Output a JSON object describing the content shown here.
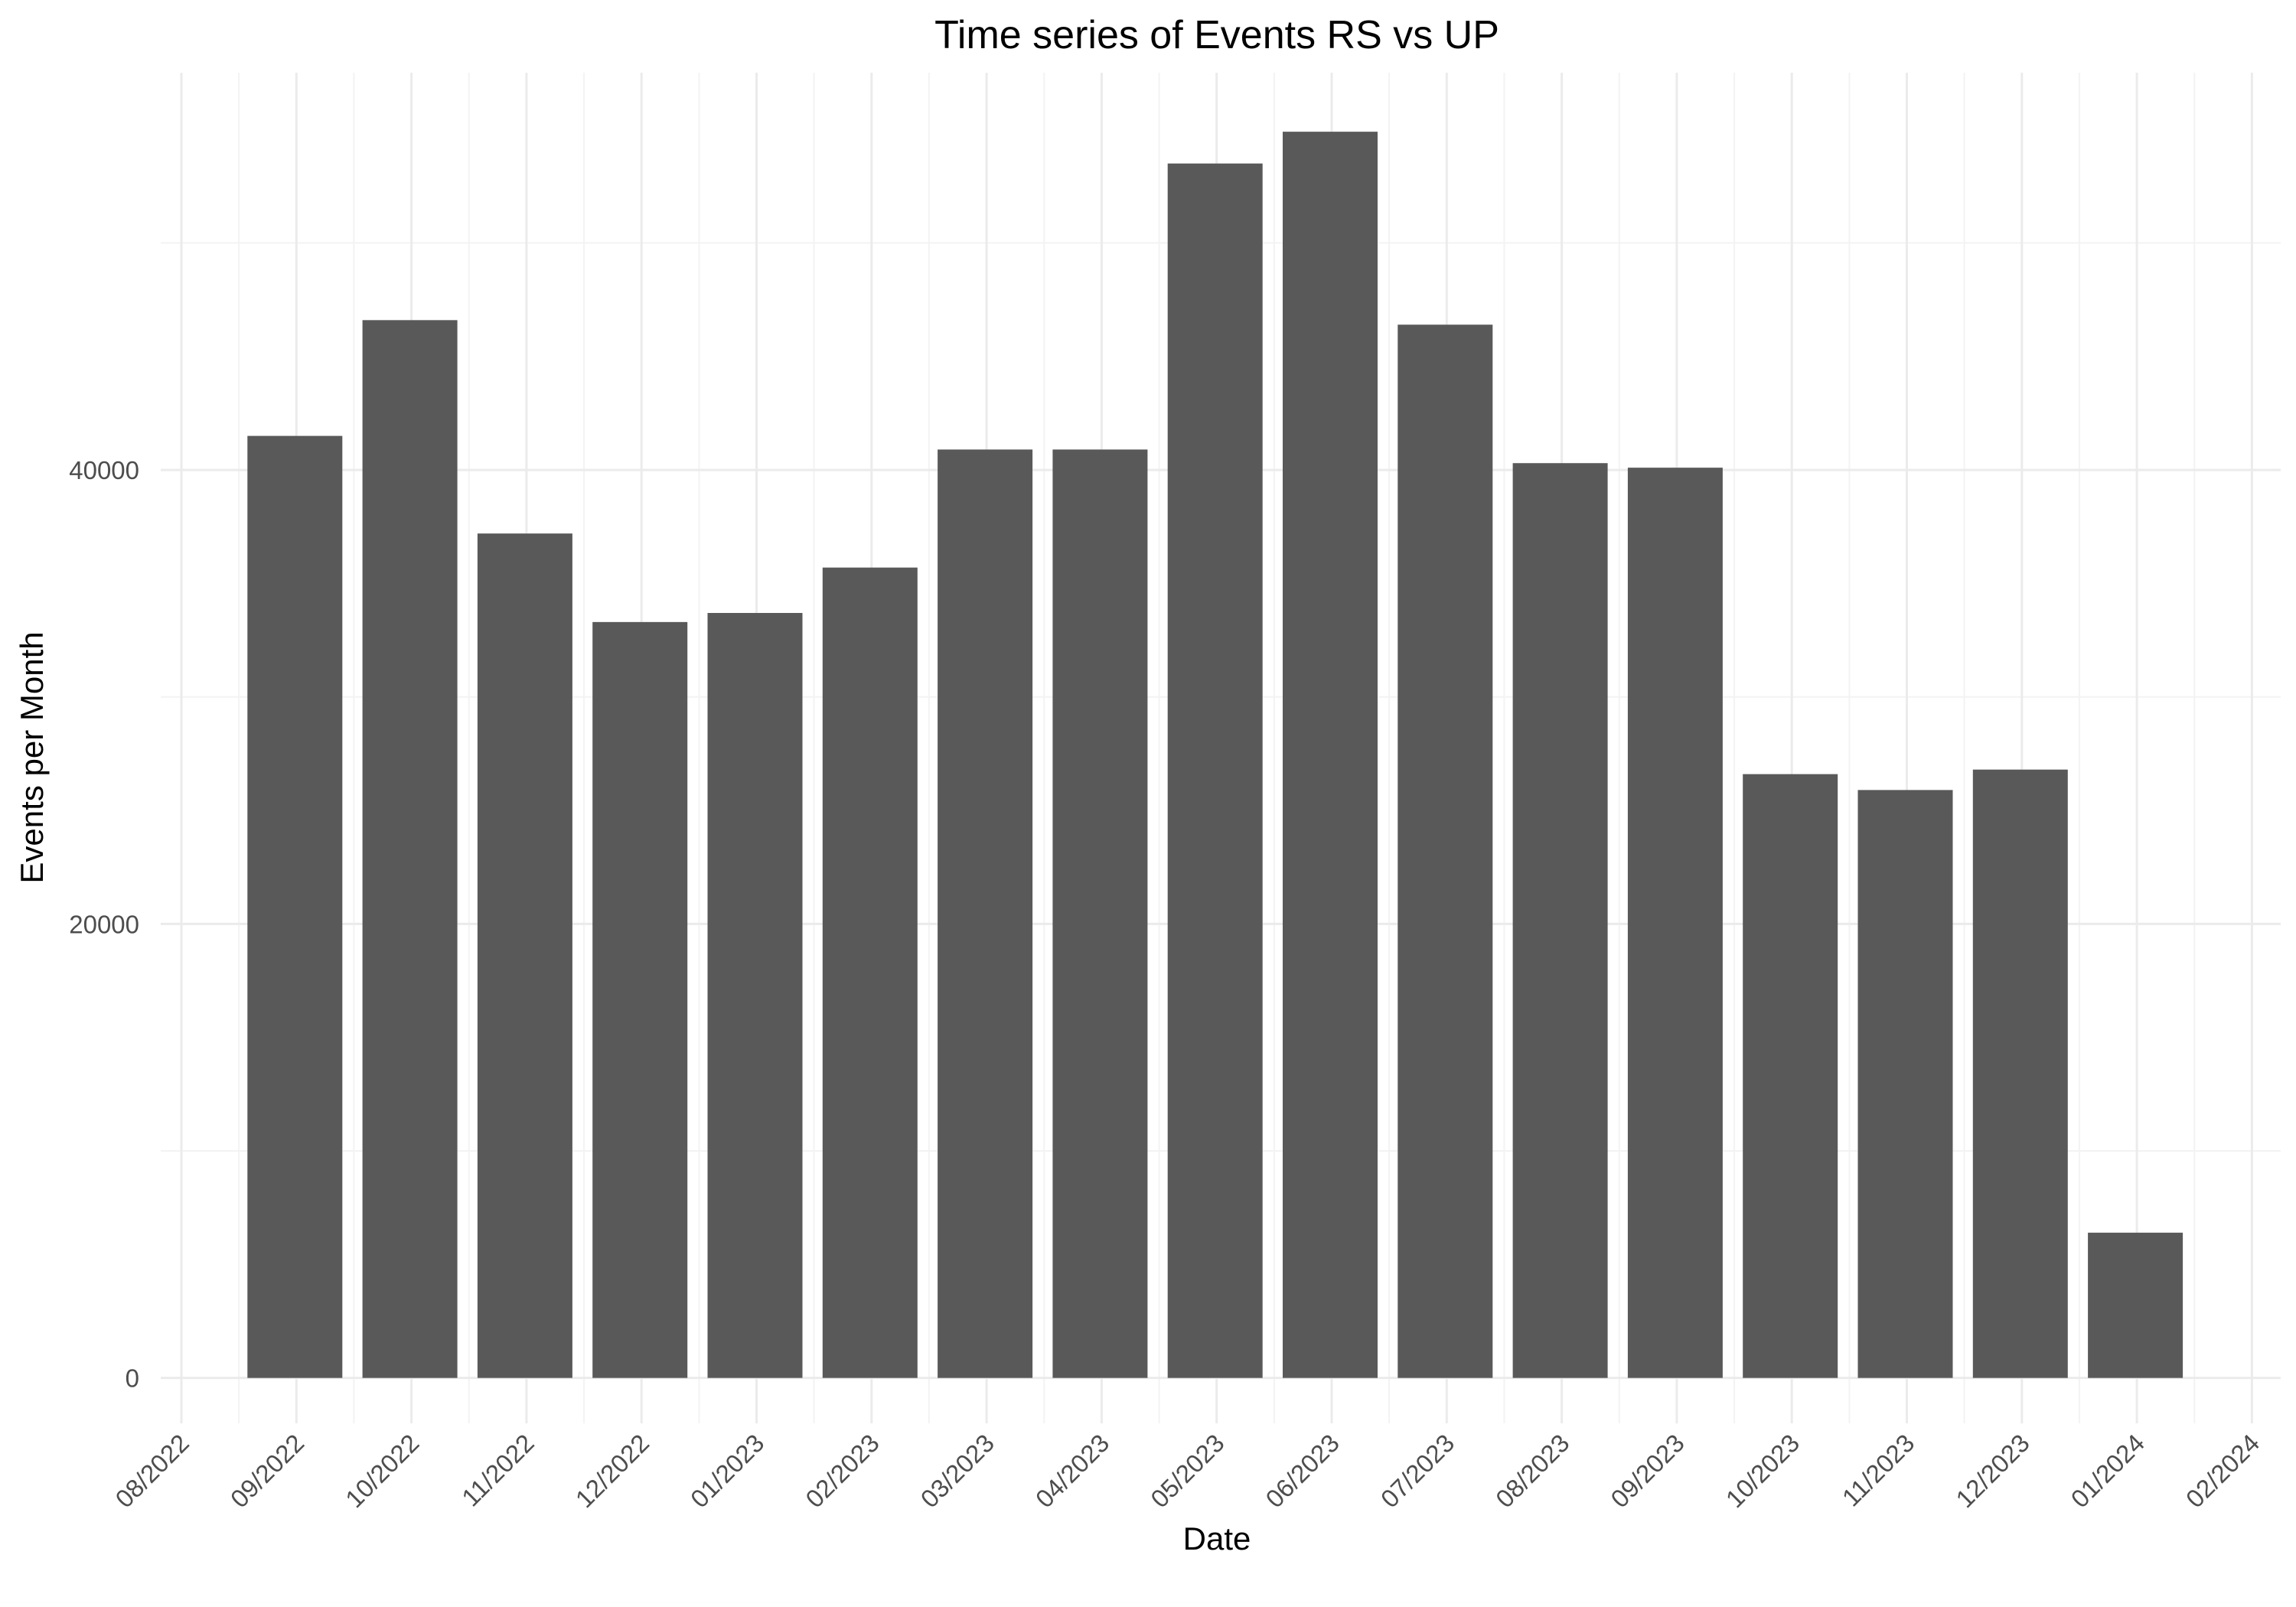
{
  "chart_data": {
    "type": "bar",
    "title": "Time series of Events RS vs UP",
    "xlabel": "Date",
    "ylabel": "Events per Month",
    "x_ticks": [
      "08/2022",
      "09/2022",
      "10/2022",
      "11/2022",
      "12/2022",
      "01/2023",
      "02/2023",
      "03/2023",
      "04/2023",
      "05/2023",
      "06/2023",
      "07/2023",
      "08/2023",
      "09/2023",
      "10/2023",
      "11/2023",
      "12/2023",
      "01/2024",
      "02/2024"
    ],
    "categories": [
      "09/2022",
      "10/2022",
      "11/2022",
      "12/2022",
      "01/2023",
      "02/2023",
      "03/2023",
      "04/2023",
      "05/2023",
      "06/2023",
      "07/2023",
      "08/2023",
      "09/2023",
      "10/2023",
      "11/2023",
      "12/2023",
      "01/2024"
    ],
    "values": [
      41500,
      46600,
      37200,
      33300,
      33700,
      35700,
      40900,
      40900,
      53500,
      54900,
      46400,
      40300,
      40100,
      26600,
      25900,
      26800,
      6400
    ],
    "y_ticks": [
      0,
      20000,
      40000
    ],
    "ylim": [
      -2000,
      57500
    ],
    "bar_color": "#595959",
    "grid": true,
    "legend": "none"
  }
}
